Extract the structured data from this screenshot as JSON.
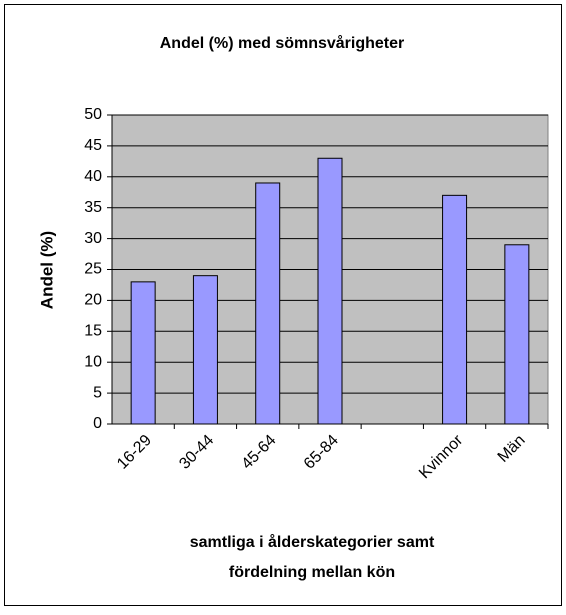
{
  "chart_data": {
    "type": "bar",
    "title": "Andel (%) med sömnsvårigheter",
    "y_label": "Andel (%)",
    "x_label": [
      "samtliga i ålderskategorier samt",
      "fördelning mellan kön"
    ],
    "categories": [
      "16-29",
      "30-44",
      "45-64",
      "65-84",
      null,
      "Kvinnor",
      "Män"
    ],
    "values": [
      23,
      24,
      39,
      43,
      null,
      37,
      29
    ],
    "color": "#9999ff",
    "ylim": [
      0,
      50
    ],
    "yticks": [
      0,
      5,
      10,
      15,
      20,
      25,
      30,
      35,
      40,
      45,
      50
    ],
    "grid": true
  }
}
